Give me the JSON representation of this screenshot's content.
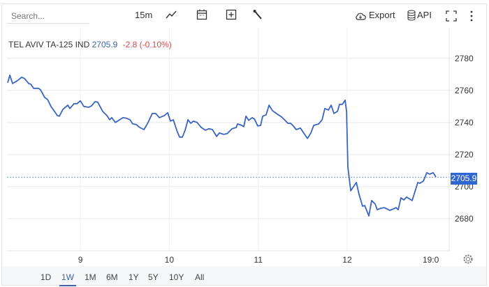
{
  "toolbar": {
    "search_placeholder": "Search...",
    "interval": "15m",
    "export": "Export",
    "api": "API"
  },
  "instrument": {
    "name": "TEL AVIV TA-125 IND",
    "price": "2705.9",
    "change": "-2.8 (-0.10%)"
  },
  "colors": {
    "line": "#3a64c0",
    "accent": "#2f66d0",
    "down": "#d24c4c"
  },
  "range_buttons": [
    "1D",
    "1W",
    "1M",
    "6M",
    "1Y",
    "5Y",
    "10Y",
    "All"
  ],
  "active_range": "1W",
  "chart_data": {
    "type": "line",
    "title": "TEL AVIV TA-125 IND",
    "xlabel": "",
    "ylabel": "",
    "xlim": [
      8.175,
      13.147
    ],
    "ylim": [
      2660,
      2799
    ],
    "x_ticks": [
      {
        "v": 9,
        "label": "9"
      },
      {
        "v": 10,
        "label": "10"
      },
      {
        "v": 11,
        "label": "11"
      },
      {
        "v": 12,
        "label": "12"
      },
      {
        "v": 12.94,
        "label": "19:0"
      }
    ],
    "y_ticks": [
      2680,
      2700,
      2720,
      2740,
      2760,
      2780
    ],
    "y_tick_labels": [
      "2680",
      "2700",
      "2720",
      "2740",
      "2760",
      "2780"
    ],
    "last_value": 2705.9,
    "last_value_label": "2705.9",
    "grid": true,
    "series": [
      {
        "name": "TA-125",
        "x": [
          8.183,
          8.207,
          8.238,
          8.293,
          8.34,
          8.372,
          8.419,
          8.442,
          8.474,
          8.529,
          8.552,
          8.599,
          8.631,
          8.67,
          8.709,
          8.741,
          8.764,
          8.804,
          8.859,
          8.882,
          8.929,
          8.961,
          9.0,
          9.039,
          9.094,
          9.126,
          9.165,
          9.196,
          9.251,
          9.298,
          9.33,
          9.353,
          9.393,
          9.432,
          9.479,
          9.518,
          9.558,
          9.589,
          9.628,
          9.668,
          9.715,
          9.762,
          9.809,
          9.848,
          9.888,
          9.943,
          9.982,
          10.013,
          10.045,
          10.084,
          10.115,
          10.147,
          10.178,
          10.21,
          10.241,
          10.272,
          10.312,
          10.359,
          10.406,
          10.445,
          10.485,
          10.532,
          10.563,
          10.61,
          10.65,
          10.689,
          10.705,
          10.752,
          10.767,
          10.815,
          10.838,
          10.862,
          10.893,
          10.932,
          10.956,
          10.995,
          11.027,
          11.05,
          11.089,
          11.121,
          11.16,
          11.215,
          11.262,
          11.301,
          11.333,
          11.364,
          11.388,
          11.427,
          11.474,
          11.506,
          11.553,
          11.592,
          11.624,
          11.679,
          11.718,
          11.749,
          11.789,
          11.82,
          11.851,
          11.891,
          11.914,
          11.946,
          11.977,
          11.993,
          12.008,
          12.04,
          12.103,
          12.134,
          12.173,
          12.197,
          12.244,
          12.275,
          12.315,
          12.338,
          12.377,
          12.416,
          12.448,
          12.479,
          12.519,
          12.55,
          12.574,
          12.605,
          12.637,
          12.668,
          12.731,
          12.794,
          12.817,
          12.857,
          12.896,
          12.927,
          12.966,
          12.998
        ],
        "y": [
          2764.8,
          2769.5,
          2764.3,
          2766.1,
          2768.2,
          2767.4,
          2764.3,
          2763.9,
          2761.3,
          2761.3,
          2760.4,
          2755.6,
          2754.3,
          2750.0,
          2746.9,
          2744.3,
          2743.9,
          2748.2,
          2750.8,
          2748.7,
          2751.7,
          2751.7,
          2753.5,
          2750.0,
          2749.5,
          2750.4,
          2753.0,
          2752.6,
          2746.9,
          2744.3,
          2741.7,
          2743.0,
          2740.0,
          2741.3,
          2743.0,
          2742.6,
          2741.7,
          2739.1,
          2738.7,
          2736.9,
          2735.6,
          2740.0,
          2745.6,
          2745.6,
          2743.0,
          2744.3,
          2746.1,
          2740.9,
          2741.7,
          2735.2,
          2730.9,
          2730.9,
          2735.2,
          2741.7,
          2739.5,
          2740.9,
          2740.0,
          2736.9,
          2735.2,
          2736.1,
          2735.6,
          2731.3,
          2733.5,
          2732.6,
          2733.0,
          2735.2,
          2736.1,
          2736.9,
          2739.1,
          2738.2,
          2737.4,
          2743.9,
          2741.3,
          2743.0,
          2742.2,
          2737.8,
          2738.2,
          2743.9,
          2744.8,
          2750.8,
          2747.4,
          2745.2,
          2743.5,
          2741.3,
          2739.5,
          2739.5,
          2738.2,
          2735.6,
          2736.5,
          2733.9,
          2730.0,
          2733.5,
          2738.2,
          2739.1,
          2741.7,
          2748.7,
          2747.8,
          2750.8,
          2745.6,
          2746.9,
          2751.3,
          2751.3,
          2753.9,
          2746.9,
          2712.1,
          2697.4,
          2702.6,
          2695.2,
          2687.8,
          2688.2,
          2681.7,
          2691.3,
          2689.1,
          2685.6,
          2686.5,
          2686.9,
          2686.1,
          2685.2,
          2686.1,
          2686.9,
          2685.6,
          2693.0,
          2691.7,
          2693.5,
          2691.3,
          2702.6,
          2702.1,
          2703.5,
          2708.7,
          2707.8,
          2708.7,
          2706.1
        ]
      }
    ]
  }
}
